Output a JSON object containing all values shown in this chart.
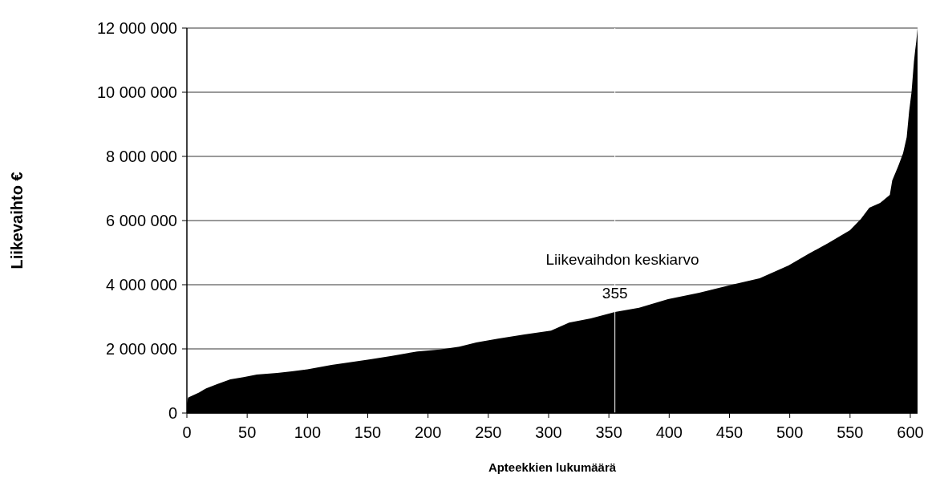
{
  "chart_data": {
    "type": "area",
    "xlabel": "Apteekkien lukumäärä",
    "ylabel": "Liikevaihto €",
    "annotations": [
      "Liikevaihdon keskiarvo"
    ],
    "x": [
      0,
      1,
      2,
      10,
      16,
      25,
      36,
      47,
      58,
      75,
      87,
      100,
      120,
      135,
      151,
      170,
      191,
      210,
      226,
      240,
      258,
      280,
      302,
      317,
      335,
      355,
      375,
      399,
      425,
      452,
      475,
      499,
      515,
      532,
      550,
      559,
      566,
      575,
      583,
      585,
      590,
      594,
      597,
      599,
      601,
      603,
      604,
      605,
      606
    ],
    "series": [
      {
        "color": "#000000",
        "values": [
          300000,
          480000,
          500000,
          640000,
          770000,
          900000,
          1050000,
          1120000,
          1200000,
          1250000,
          1300000,
          1360000,
          1500000,
          1580000,
          1670000,
          1780000,
          1920000,
          1980000,
          2070000,
          2200000,
          2320000,
          2450000,
          2570000,
          2820000,
          2950000,
          3150000,
          3280000,
          3550000,
          3750000,
          4000000,
          4200000,
          4600000,
          4950000,
          5300000,
          5700000,
          6050000,
          6400000,
          6550000,
          6800000,
          7250000,
          7700000,
          8100000,
          8600000,
          9400000,
          10000000,
          10950000,
          11300000,
          11600000,
          12000000
        ]
      }
    ],
    "xlim": [
      0,
      606
    ],
    "ylim": [
      0,
      12000000
    ],
    "xticks": [
      0,
      50,
      100,
      150,
      200,
      250,
      300,
      350,
      400,
      450,
      500,
      550,
      600
    ],
    "yticks": [
      0,
      {
        "value": 2000000,
        "label": "2 000 000"
      },
      {
        "value": 4000000,
        "label": "4 000 000"
      },
      {
        "value": 6000000,
        "label": "6 000 000"
      },
      {
        "value": 8000000,
        "label": "8 000 000"
      },
      {
        "value": 10000000,
        "label": "10 000 000"
      },
      {
        "value": 12000000,
        "label": "12 000 000"
      }
    ],
    "grid": "y",
    "ref_lines": [
      {
        "axis": "x",
        "value": 355,
        "label": "355",
        "color": "#ffffff"
      }
    ]
  }
}
